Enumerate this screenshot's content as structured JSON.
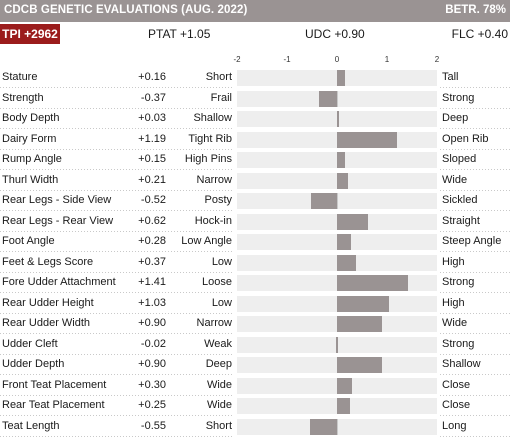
{
  "header": {
    "title": "CDCB GENETIC EVALUATIONS (AUG. 2022)",
    "reliability": "BETR. 78%"
  },
  "summary": {
    "tpi": "TPI +2962",
    "ptat": "PTAT +1.05",
    "udc": "UDC +0.90",
    "flc": "FLC +0.40"
  },
  "colors": {
    "header_bg": "#9a9393",
    "tpi_badge": "#9b1c1c",
    "bar": "#9a9393",
    "track": "#eeeeee"
  },
  "chart_data": {
    "type": "bar",
    "orientation": "horizontal",
    "xlim": [
      -2,
      2
    ],
    "ticks": [
      "-2",
      "-1",
      "0",
      "1",
      "2"
    ],
    "categories": [
      "Stature",
      "Strength",
      "Body Depth",
      "Dairy Form",
      "Rump Angle",
      "Thurl Width",
      "Rear Legs - Side View",
      "Rear Legs - Rear View",
      "Foot Angle",
      "Feet & Legs Score",
      "Fore Udder Attachment",
      "Rear Udder Height",
      "Rear Udder Width",
      "Udder Cleft",
      "Udder Depth",
      "Front Teat Placement",
      "Rear Teat Placement",
      "Teat Length"
    ],
    "values": [
      0.16,
      -0.37,
      0.03,
      1.19,
      0.15,
      0.21,
      -0.52,
      0.62,
      0.28,
      0.37,
      1.41,
      1.03,
      0.9,
      -0.02,
      0.9,
      0.3,
      0.25,
      -0.55
    ],
    "value_labels": [
      "+0.16",
      "-0.37",
      "+0.03",
      "+1.19",
      "+0.15",
      "+0.21",
      "-0.52",
      "+0.62",
      "+0.28",
      "+0.37",
      "+1.41",
      "+1.03",
      "+0.90",
      "-0.02",
      "+0.90",
      "+0.30",
      "+0.25",
      "-0.55"
    ],
    "low_labels": [
      "Short",
      "Frail",
      "Shallow",
      "Tight Rib",
      "High Pins",
      "Narrow",
      "Posty",
      "Hock-in",
      "Low Angle",
      "Low",
      "Loose",
      "Low",
      "Narrow",
      "Weak",
      "Deep",
      "Wide",
      "Wide",
      "Short"
    ],
    "high_labels": [
      "Tall",
      "Strong",
      "Deep",
      "Open Rib",
      "Sloped",
      "Wide",
      "Sickled",
      "Straight",
      "Steep Angle",
      "High",
      "Strong",
      "High",
      "Wide",
      "Strong",
      "Shallow",
      "Close",
      "Close",
      "Long"
    ]
  }
}
